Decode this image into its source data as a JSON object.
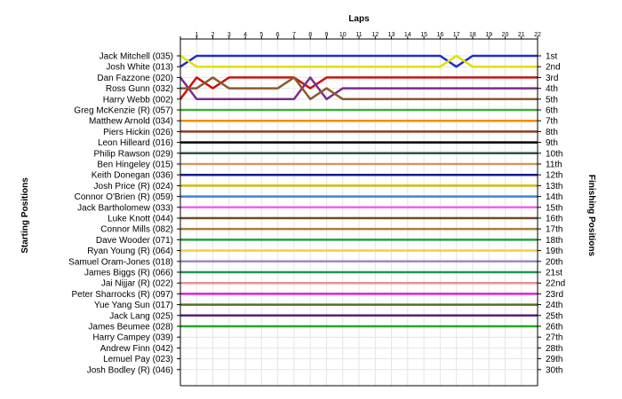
{
  "chart_data": {
    "type": "line",
    "title": "Laps",
    "ylabel_left": "Starting Positions",
    "ylabel_right": "Finishing Positions",
    "x": [
      1,
      2,
      3,
      4,
      5,
      6,
      7,
      8,
      9,
      10,
      11,
      12,
      13,
      14,
      15,
      16,
      17,
      18,
      19,
      20,
      21,
      22
    ],
    "xlim": [
      0,
      22
    ],
    "ylim": [
      1,
      30
    ],
    "y_inverted": true,
    "grid": true,
    "drivers": [
      "Jack Mitchell (035)",
      "Josh White (013)",
      "Dan Fazzone (020)",
      "Ross Gunn (032)",
      "Harry Webb (002)",
      "Greg McKenzie (R) (057)",
      "Matthew Arnold (034)",
      "Piers Hickin (026)",
      "Leon Hilleard (016)",
      "Philip Rawson (029)",
      "Ben Hingeley (015)",
      "Keith Donegan (036)",
      "Josh Price (R) (024)",
      "Connor O'Brien (R) (059)",
      "Jack Bartholomew (033)",
      "Luke Knott (044)",
      "Connor Mills (082)",
      "Dave Wooder (071)",
      "Ryan Young (R) (064)",
      "Samuel Oram-Jones (018)",
      "James Biggs (R) (066)",
      "Jai Nijjar (R) (022)",
      "Peter Sharrocks (R) (097)",
      "Yue Yang Sun (017)",
      "Jack Lang (025)",
      "James Beumee (028)",
      "Harry Campey (039)",
      "Andrew Finn (042)",
      "Lemuel Pay (023)",
      "Josh Bodley (R) (046)"
    ],
    "finish_labels": [
      "1st",
      "2nd",
      "3rd",
      "4th",
      "5th",
      "6th",
      "7th",
      "8th",
      "9th",
      "10th",
      "11th",
      "12th",
      "13th",
      "14th",
      "15th",
      "16th",
      "17th",
      "18th",
      "19th",
      "20th",
      "21st",
      "22nd",
      "23rd",
      "24th",
      "25th",
      "26th",
      "27th",
      "28th",
      "29th",
      "30th"
    ],
    "series": [
      {
        "color": "#1f2bd6",
        "positions": [
          2,
          1,
          1,
          1,
          1,
          1,
          1,
          1,
          1,
          1,
          1,
          1,
          1,
          1,
          1,
          1,
          1,
          2,
          1,
          1,
          1,
          1,
          1
        ]
      },
      {
        "color": "#e0e000",
        "positions": [
          1,
          2,
          2,
          2,
          2,
          2,
          2,
          2,
          2,
          2,
          2,
          2,
          2,
          2,
          2,
          2,
          2,
          1,
          2,
          2,
          2,
          2,
          2
        ]
      },
      {
        "color": "#cc1111",
        "positions": [
          5,
          3,
          4,
          3,
          3,
          3,
          3,
          3,
          4,
          3,
          3,
          3,
          3,
          3,
          3,
          3,
          3,
          3,
          3,
          3,
          3,
          3,
          3
        ]
      },
      {
        "color": "#7b2d8e",
        "positions": [
          3,
          5,
          5,
          5,
          5,
          5,
          5,
          5,
          3,
          5,
          4,
          4,
          4,
          4,
          4,
          4,
          4,
          4,
          4,
          4,
          4,
          4,
          4
        ]
      },
      {
        "color": "#8b5a2b",
        "positions": [
          4,
          4,
          3,
          4,
          4,
          4,
          4,
          3,
          5,
          4,
          5,
          5,
          5,
          5,
          5,
          5,
          5,
          5,
          5,
          5,
          5,
          5,
          5
        ]
      },
      {
        "color": "#3cb034",
        "positions": [
          6,
          6,
          6,
          6,
          6,
          6,
          6,
          6,
          6,
          6,
          6,
          6,
          6,
          6,
          6,
          6,
          6,
          6,
          6,
          6,
          6,
          6,
          6
        ]
      },
      {
        "color": "#f28c0f",
        "positions": [
          7,
          7,
          7,
          7,
          7,
          7,
          7,
          7,
          7,
          7,
          7,
          7,
          7,
          7,
          7,
          7,
          7,
          7,
          7,
          7,
          7,
          7,
          7
        ]
      },
      {
        "color": "#8a3b1c",
        "positions": [
          8,
          8,
          8,
          8,
          8,
          8,
          8,
          8,
          8,
          8,
          8,
          8,
          8,
          8,
          8,
          8,
          8,
          8,
          8,
          8,
          8,
          8,
          8
        ]
      },
      {
        "color": "#000000",
        "positions": [
          9,
          9,
          9,
          9,
          9,
          9,
          9,
          9,
          9,
          9,
          9,
          9,
          9,
          9,
          9,
          9,
          9,
          9,
          9,
          9,
          9,
          9,
          9
        ]
      },
      {
        "color": "#2f4f4f",
        "positions": [
          10,
          10,
          10,
          10,
          10,
          10,
          10,
          10,
          10,
          10,
          10,
          10,
          10,
          10,
          10,
          10,
          10,
          10,
          10,
          10,
          10,
          10,
          10
        ]
      },
      {
        "color": "#cc9966",
        "positions": [
          11,
          11,
          11,
          11,
          11,
          11,
          11,
          11,
          11,
          11,
          11,
          11,
          11,
          11,
          11,
          11,
          11,
          11,
          11,
          11,
          11,
          11,
          11
        ]
      },
      {
        "color": "#1a1a8c",
        "positions": [
          12,
          12,
          12,
          12,
          12,
          12,
          12,
          12,
          12,
          12,
          12,
          12,
          12,
          12,
          12,
          12,
          12,
          12,
          12,
          12,
          12,
          12,
          12
        ]
      },
      {
        "color": "#d4b800",
        "positions": [
          13,
          13,
          13,
          13,
          13,
          13,
          13,
          13,
          13,
          13,
          13,
          13,
          13,
          13,
          13,
          13,
          13,
          13,
          13,
          13,
          13,
          13,
          13
        ]
      },
      {
        "color": "#3a86d8",
        "positions": [
          14,
          14,
          14,
          14,
          14,
          14,
          14,
          14,
          14,
          14,
          14,
          14,
          14,
          14,
          14,
          14,
          14,
          14,
          14,
          14,
          14,
          14,
          14
        ]
      },
      {
        "color": "#ee66ee",
        "positions": [
          15,
          15,
          15,
          15,
          15,
          15,
          15,
          15,
          15,
          15,
          15,
          15,
          15,
          15,
          15,
          15,
          15,
          15,
          15,
          15,
          15,
          15,
          15
        ]
      },
      {
        "color": "#6f4c24",
        "positions": [
          16,
          16,
          16,
          16,
          16,
          16,
          16,
          16,
          16,
          16,
          16,
          16,
          16,
          16,
          16,
          16,
          16,
          16,
          16,
          16,
          16,
          16,
          16
        ]
      },
      {
        "color": "#a87f3d",
        "positions": [
          17,
          17,
          17,
          17,
          17,
          17,
          17,
          17,
          17,
          17,
          17,
          17,
          17,
          17,
          17,
          17,
          17,
          17,
          17,
          17,
          17,
          17,
          17
        ]
      },
      {
        "color": "#20a040",
        "positions": [
          18,
          18,
          18,
          18,
          18,
          18,
          18,
          18,
          18,
          18,
          18,
          18,
          18,
          18,
          18,
          18,
          18,
          18,
          18,
          18,
          18,
          18,
          18
        ]
      },
      {
        "color": "#f0d040",
        "positions": [
          19,
          19,
          19,
          19,
          19,
          19,
          19,
          19,
          19,
          19,
          19,
          19,
          19,
          19,
          19,
          19,
          19,
          19,
          19,
          19,
          19,
          19,
          19
        ]
      },
      {
        "color": "#9a8acd",
        "positions": [
          20,
          20,
          20,
          20,
          20,
          20,
          20,
          20,
          20,
          20,
          20,
          20,
          20,
          20,
          20,
          20,
          20,
          20,
          20,
          20,
          20,
          20,
          20
        ]
      },
      {
        "color": "#1e9650",
        "positions": [
          21,
          21,
          21,
          21,
          21,
          21,
          21,
          21,
          21,
          21,
          21,
          21,
          21,
          21,
          21,
          21,
          21,
          21,
          21,
          21,
          21,
          21,
          21
        ]
      },
      {
        "color": "#e89090",
        "positions": [
          22,
          22,
          22,
          22,
          22,
          22,
          22,
          22,
          22,
          22,
          22,
          22,
          22,
          22,
          22,
          22,
          22,
          22,
          22,
          22,
          22,
          22,
          22
        ]
      },
      {
        "color": "#e020d0",
        "positions": [
          23,
          23,
          23,
          23,
          23,
          23,
          23,
          23,
          23,
          23,
          23,
          23,
          23,
          23,
          23,
          23,
          23,
          23,
          23,
          23,
          23,
          23,
          23
        ]
      },
      {
        "color": "#507020",
        "positions": [
          24,
          24,
          24,
          24,
          24,
          24,
          24,
          24,
          24,
          24,
          24,
          24,
          24,
          24,
          24,
          24,
          24,
          24,
          24,
          24,
          24,
          24,
          24
        ]
      },
      {
        "color": "#5a1f7a",
        "positions": [
          25,
          25,
          25,
          25,
          25,
          25,
          25,
          25,
          25,
          25,
          25,
          25,
          25,
          25,
          25,
          25,
          25,
          25,
          25,
          25,
          25,
          25,
          25
        ]
      },
      {
        "color": "#22aa22",
        "positions": [
          26,
          26,
          26,
          26,
          26,
          26,
          26,
          26,
          26,
          26,
          26,
          26,
          26,
          26,
          26,
          26,
          26,
          26,
          26,
          26,
          26,
          26,
          26
        ]
      }
    ]
  }
}
